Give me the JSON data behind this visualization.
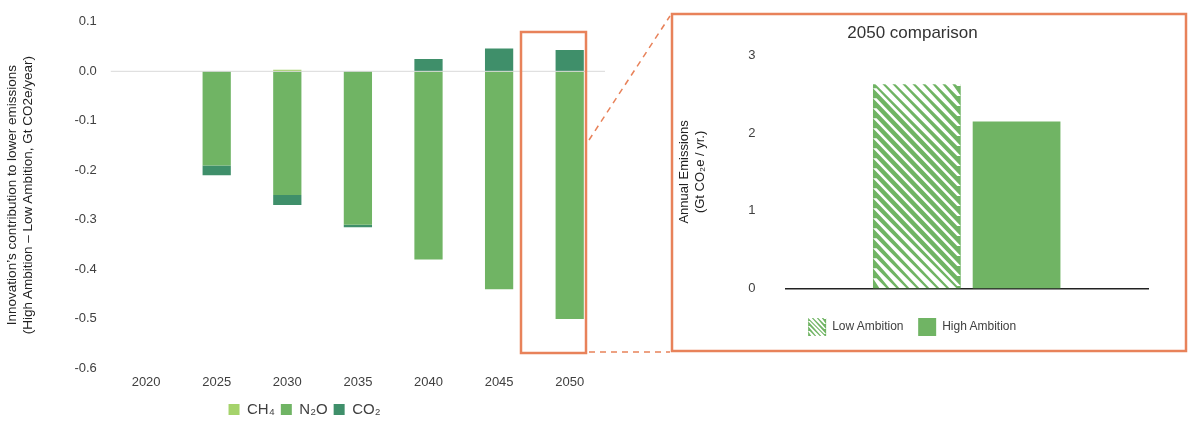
{
  "chart_data": [
    {
      "type": "bar",
      "stacked": true,
      "ylabel": "Innovation’s contribution to lower emissions (High Ambition – Low Ambition, Gt CO2e/year)",
      "categories": [
        "2020",
        "2025",
        "2030",
        "2035",
        "2040",
        "2045",
        "2050"
      ],
      "series": [
        {
          "name": "CH₄",
          "color": "#a5d36b",
          "values": [
            0,
            0,
            0.003,
            0,
            0,
            0,
            0
          ]
        },
        {
          "name": "N₂O",
          "color": "#70b464",
          "values": [
            0,
            -0.19,
            -0.25,
            -0.31,
            -0.38,
            -0.44,
            -0.5
          ]
        },
        {
          "name": "CO₂",
          "color": "#3f8f6a",
          "values": [
            0,
            -0.02,
            -0.02,
            -0.005,
            0.025,
            0.046,
            0.043
          ]
        }
      ],
      "ylim": [
        -0.6,
        0.1
      ],
      "yticks": [
        0.1,
        {
          "value": 0,
          "label": "0.0"
        },
        -0.1,
        -0.2,
        -0.3,
        -0.4,
        -0.5,
        -0.6
      ],
      "grid": false,
      "legend": "bottom",
      "ref_lines": [
        {
          "axis": "y",
          "value": 0,
          "color": "#d9d9d9"
        }
      ]
    },
    {
      "type": "bar",
      "title": "2050 comparison",
      "ylabel": "Annual Emissions (Gt CO₂e / yr.)",
      "categories": [
        null
      ],
      "series": [
        {
          "name": "Low Ambition",
          "color": "#70b464",
          "values": [
            2.63
          ]
        },
        {
          "name": "High Ambition",
          "color": "#70b464",
          "values": [
            2.15
          ]
        }
      ],
      "ylim": [
        0,
        3
      ],
      "yticks": [
        0,
        1,
        2,
        3
      ],
      "grid": false,
      "legend": "bottom"
    }
  ]
}
